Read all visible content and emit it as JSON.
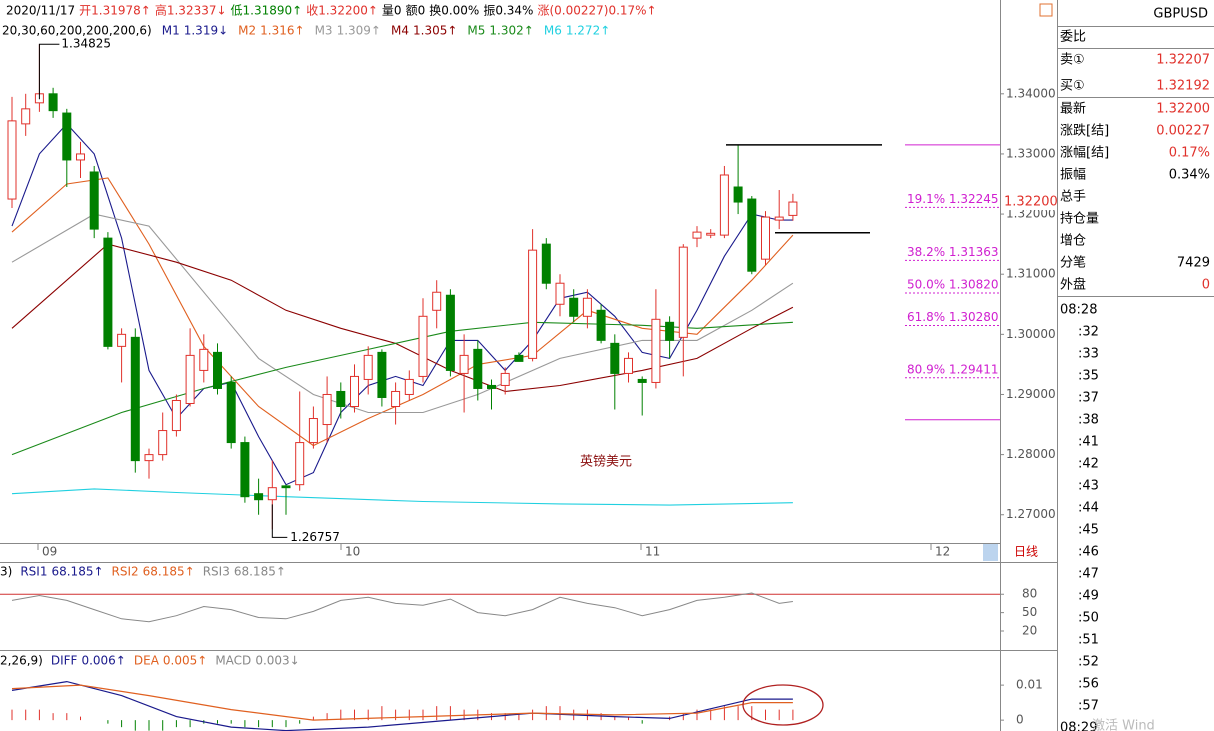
{
  "header": [
    {
      "text": "2020/11/17",
      "color": "#000000"
    },
    {
      "text": "开1.31978↑",
      "color": "#e0312b"
    },
    {
      "text": "高1.32337↓",
      "color": "#e0312b"
    },
    {
      "text": "低1.31890↑",
      "color": "#008000"
    },
    {
      "text": "收1.32200↑",
      "color": "#e0312b"
    },
    {
      "text": "量0",
      "color": "#000000"
    },
    {
      "text": "额0",
      "color": "#000000"
    },
    {
      "text": "换0.00%",
      "color": "#000000"
    },
    {
      "text": "振0.34%",
      "color": "#000000"
    },
    {
      "text": "涨(0.00227)0.17%↑",
      "color": "#e0312b"
    }
  ],
  "chart_data": {
    "type": "candlestick",
    "ylim": [
      1.2653,
      1.3556
    ],
    "yticks": [
      {
        "value": 1.34,
        "label": "1.34000"
      },
      {
        "value": 1.33,
        "label": "1.33000"
      },
      {
        "value": 1.32,
        "label": "1.32000"
      },
      {
        "value": 1.31,
        "label": "1.31000"
      },
      {
        "value": 1.3,
        "label": "1.30000"
      },
      {
        "value": 1.29,
        "label": "1.29000"
      },
      {
        "value": 1.28,
        "label": "1.28000"
      },
      {
        "value": 1.27,
        "label": "1.27000"
      }
    ],
    "x_labels": [
      "09",
      "10",
      "11",
      "12",
      "日线"
    ],
    "ma_params": "20,30,60,200,200,200,6)",
    "open": [
      1.3225,
      1.335,
      1.3385,
      1.34,
      1.3368,
      1.329,
      1.327,
      1.316,
      1.298,
      1.2995,
      1.279,
      1.28,
      1.284,
      1.2885,
      1.294,
      1.297,
      1.292,
      1.282,
      1.2735,
      1.2725,
      1.2748,
      1.275,
      1.282,
      1.285,
      1.2905,
      1.288,
      1.2925,
      1.297,
      1.288,
      1.29,
      1.293,
      1.304,
      1.3065,
      1.2935,
      1.2975,
      1.2915,
      1.2915,
      1.2965,
      1.296,
      1.315,
      1.305,
      1.306,
      1.303,
      1.304,
      1.2985,
      1.2935,
      1.2925,
      1.292,
      1.302,
      1.2995,
      1.316,
      1.3165,
      1.3165,
      1.3245,
      1.3225,
      1.3125,
      1.319,
      1.31978
    ],
    "high": [
      1.3395,
      1.34,
      1.34825,
      1.341,
      1.3375,
      1.332,
      1.328,
      1.317,
      1.301,
      1.301,
      1.281,
      1.287,
      1.29,
      1.301,
      1.3,
      1.2985,
      1.293,
      1.283,
      1.276,
      1.279,
      1.275,
      1.2905,
      1.288,
      1.293,
      1.292,
      1.295,
      1.298,
      1.2975,
      1.292,
      1.294,
      1.306,
      1.309,
      1.3075,
      1.3,
      1.299,
      1.2925,
      1.2945,
      1.297,
      1.3175,
      1.316,
      1.31,
      1.3075,
      1.3075,
      1.305,
      1.3,
      1.297,
      1.293,
      1.3075,
      1.303,
      1.315,
      1.318,
      1.3175,
      1.328,
      1.3315,
      1.323,
      1.3205,
      1.324,
      1.32337
    ],
    "low": [
      1.321,
      1.333,
      1.337,
      1.336,
      1.3245,
      1.326,
      1.316,
      1.2975,
      1.292,
      1.277,
      1.276,
      1.279,
      1.283,
      1.288,
      1.292,
      1.29,
      1.281,
      1.272,
      1.27,
      1.26757,
      1.27,
      1.274,
      1.281,
      1.282,
      1.286,
      1.287,
      1.29,
      1.288,
      1.285,
      1.289,
      1.292,
      1.301,
      1.293,
      1.287,
      1.289,
      1.2875,
      1.29,
      1.2955,
      1.2955,
      1.3075,
      1.303,
      1.302,
      1.301,
      1.2985,
      1.2875,
      1.292,
      1.2865,
      1.291,
      1.296,
      1.293,
      1.3145,
      1.316,
      1.316,
      1.32,
      1.31,
      1.3115,
      1.3175,
      1.3189
    ],
    "close": [
      1.3355,
      1.3375,
      1.34,
      1.3372,
      1.329,
      1.33,
      1.3175,
      1.298,
      1.3,
      1.279,
      1.28,
      1.284,
      1.289,
      1.2965,
      1.2975,
      1.291,
      1.282,
      1.273,
      1.2725,
      1.2745,
      1.2745,
      1.282,
      1.286,
      1.29,
      1.288,
      1.293,
      1.2965,
      1.2895,
      1.2905,
      1.2925,
      1.303,
      1.307,
      1.294,
      1.2965,
      1.291,
      1.291,
      1.2935,
      1.2955,
      1.314,
      1.3085,
      1.3085,
      1.303,
      1.306,
      1.299,
      1.2935,
      1.296,
      1.292,
      1.3025,
      1.299,
      1.3145,
      1.317,
      1.3168,
      1.3265,
      1.322,
      1.3105,
      1.3195,
      1.3195,
      1.322
    ],
    "series": [
      {
        "name": "M1",
        "legend": "1.319↓",
        "color": "#1a1a8c",
        "x": [
          0,
          2,
          4,
          6,
          8,
          10,
          12,
          14,
          16,
          18,
          20,
          22,
          24,
          26,
          28,
          30,
          32,
          34,
          36,
          38,
          40,
          42,
          44,
          46,
          48,
          50,
          52,
          54,
          56,
          57
        ],
        "values": [
          1.318,
          1.33,
          1.335,
          1.33,
          1.316,
          1.294,
          1.286,
          1.291,
          1.292,
          1.283,
          1.275,
          1.277,
          1.287,
          1.2915,
          1.293,
          1.2915,
          1.299,
          1.299,
          1.294,
          1.299,
          1.306,
          1.307,
          1.303,
          1.297,
          1.296,
          1.304,
          1.313,
          1.32,
          1.319,
          1.319
        ]
      },
      {
        "name": "M2",
        "legend": "1.316↑",
        "color": "#e06020",
        "x": [
          0,
          4,
          7,
          10,
          14,
          18,
          22,
          26,
          30,
          34,
          38,
          42,
          46,
          50,
          54,
          57
        ],
        "values": [
          1.317,
          1.325,
          1.326,
          1.315,
          1.298,
          1.288,
          1.2815,
          1.286,
          1.29,
          1.295,
          1.2965,
          1.304,
          1.301,
          1.3,
          1.309,
          1.3165
        ]
      },
      {
        "name": "M3",
        "legend": "1.309↑",
        "color": "#999999",
        "x": [
          0,
          6,
          10,
          14,
          18,
          22,
          26,
          30,
          34,
          40,
          46,
          50,
          54,
          57
        ],
        "values": [
          1.312,
          1.32,
          1.318,
          1.307,
          1.296,
          1.29,
          1.287,
          1.287,
          1.29,
          1.296,
          1.299,
          1.299,
          1.304,
          1.3085
        ]
      },
      {
        "name": "M4",
        "legend": "1.305↑",
        "color": "#8b0000",
        "x": [
          0,
          7,
          12,
          16,
          20,
          24,
          28,
          32,
          36,
          40,
          46,
          50,
          54,
          57
        ],
        "values": [
          1.301,
          1.315,
          1.312,
          1.309,
          1.304,
          1.301,
          1.2985,
          1.294,
          1.2905,
          1.2915,
          1.294,
          1.296,
          1.301,
          1.3045
        ]
      },
      {
        "name": "M5",
        "legend": "1.302↑",
        "color": "#1a8a1a",
        "x": [
          0,
          8,
          14,
          20,
          26,
          32,
          38,
          46,
          50,
          57
        ],
        "values": [
          1.28,
          1.287,
          1.291,
          1.2945,
          1.2975,
          1.3005,
          1.302,
          1.3015,
          1.301,
          1.302
        ]
      },
      {
        "name": "M6",
        "legend": "1.272↑",
        "color": "#20d0e0",
        "x": [
          0,
          6,
          12,
          20,
          30,
          40,
          48,
          57
        ],
        "values": [
          1.2735,
          1.2743,
          1.2737,
          1.273,
          1.2722,
          1.2718,
          1.2716,
          1.272
        ]
      }
    ],
    "high_mark": 1.34825,
    "low_mark": 1.26757,
    "price_tag": {
      "value": 1.322,
      "label": "1.32200"
    },
    "hlines": [
      1.3315,
      1.3169
    ],
    "fib_range": [
      1.3315,
      1.2858
    ],
    "fib_levels": [
      {
        "value": 1.32245,
        "label": "19.1% 1.32245"
      },
      {
        "value": 1.31363,
        "label": "38.2% 1.31363"
      },
      {
        "value": 1.3082,
        "label": "50.0% 1.30820"
      },
      {
        "value": 1.3028,
        "label": "61.8% 1.30280"
      },
      {
        "value": 1.29411,
        "label": "80.9% 1.29411"
      }
    ],
    "annotation": "英镑美元"
  },
  "rsi": {
    "params": "3)",
    "ylim": [
      -11,
      131
    ],
    "yticks": [
      80,
      50,
      20
    ],
    "ref": 80,
    "legend": [
      {
        "name": "RSI1",
        "text": "68.185↑",
        "color": "#1a1a8c"
      },
      {
        "name": "RSI2",
        "text": "68.185↑",
        "color": "#e06020"
      },
      {
        "name": "RSI3",
        "text": "68.185↑",
        "color": "#888888"
      }
    ],
    "x": [
      0,
      2,
      4,
      6,
      8,
      10,
      12,
      14,
      16,
      18,
      20,
      22,
      24,
      26,
      28,
      30,
      32,
      34,
      36,
      38,
      40,
      42,
      44,
      46,
      48,
      50,
      52,
      54,
      56,
      57
    ],
    "values": [
      70,
      78,
      70,
      55,
      40,
      35,
      45,
      60,
      55,
      42,
      40,
      52,
      70,
      75,
      65,
      62,
      72,
      50,
      45,
      55,
      75,
      65,
      58,
      45,
      55,
      70,
      75,
      82,
      65,
      68.185
    ]
  },
  "macd": {
    "params": "2,26,9)",
    "ylim": [
      -0.0031,
      0.0186
    ],
    "yticks": [
      0.01,
      0
    ],
    "legend": [
      {
        "name": "DIFF",
        "text": "0.006↑",
        "color": "#1a1a8c"
      },
      {
        "name": "DEA",
        "text": "0.005↑",
        "color": "#e06020"
      },
      {
        "name": "MACD",
        "text": "0.003↓",
        "color": "#888888"
      }
    ],
    "diff": {
      "x": [
        0,
        4,
        8,
        12,
        16,
        20,
        26,
        32,
        38,
        44,
        48,
        54,
        57
      ],
      "values": [
        0.0085,
        0.011,
        0.007,
        0.001,
        -0.002,
        -0.003,
        -0.002,
        0,
        0.002,
        0.001,
        0.0005,
        0.006,
        0.006
      ]
    },
    "dea": {
      "x": [
        0,
        5,
        10,
        16,
        22,
        30,
        38,
        44,
        50,
        54,
        57
      ],
      "values": [
        0.009,
        0.01,
        0.007,
        0.003,
        0,
        0.001,
        0.002,
        0.0015,
        0.002,
        0.005,
        0.005
      ]
    },
    "hist": [
      0.003,
      0.003,
      0.003,
      0.002,
      0.002,
      0.001,
      0,
      -0.001,
      -0.002,
      -0.003,
      -0.003,
      -0.003,
      -0.002,
      -0.002,
      -0.001,
      -0.001,
      -0.001,
      -0.002,
      -0.002,
      -0.002,
      -0.002,
      -0.001,
      0.001,
      0.002,
      0.003,
      0.003,
      0.003,
      0.004,
      0.003,
      0.003,
      0.003,
      0.004,
      0.004,
      0.003,
      0.003,
      0.002,
      0.002,
      0.002,
      0.003,
      0.004,
      0.004,
      0.003,
      0.003,
      0.002,
      0.001,
      0.001,
      -0.001,
      0,
      0.001,
      0.002,
      0.003,
      0.003,
      0.004,
      0.004,
      0.004,
      0.003,
      0.003,
      0.003
    ]
  },
  "quote": {
    "symbol": "GBPUSD",
    "rows": [
      {
        "label": "委比",
        "value": "",
        "color": "#000"
      },
      {
        "label": "卖①",
        "value": "1.32207",
        "color": "#e0312b"
      },
      {
        "label": "买①",
        "value": "1.32192",
        "color": "#e0312b"
      },
      {
        "label": "最新",
        "value": "1.32200",
        "color": "#e0312b"
      },
      {
        "label": "涨跌[结]",
        "value": "0.00227",
        "color": "#e0312b"
      },
      {
        "label": "涨幅[结]",
        "value": "0.17%",
        "color": "#e0312b"
      },
      {
        "label": "振幅",
        "value": "0.34%",
        "color": "#000"
      },
      {
        "label": "总手",
        "value": "",
        "color": "#000"
      },
      {
        "label": "持仓量",
        "value": "",
        "color": "#000"
      },
      {
        "label": "增仓",
        "value": "",
        "color": "#000"
      },
      {
        "label": "分笔",
        "value": "7429",
        "color": "#000"
      },
      {
        "label": "外盘",
        "value": "0",
        "color": "#e0312b"
      }
    ],
    "times": [
      "08:28",
      ":32",
      ":33",
      ":35",
      ":37",
      ":38",
      ":41",
      ":42",
      ":43",
      ":44",
      ":45",
      ":46",
      ":47",
      ":49",
      ":50",
      ":51",
      ":52",
      ":56",
      ":57",
      "08:29"
    ]
  },
  "watermark": "激活 Wind"
}
